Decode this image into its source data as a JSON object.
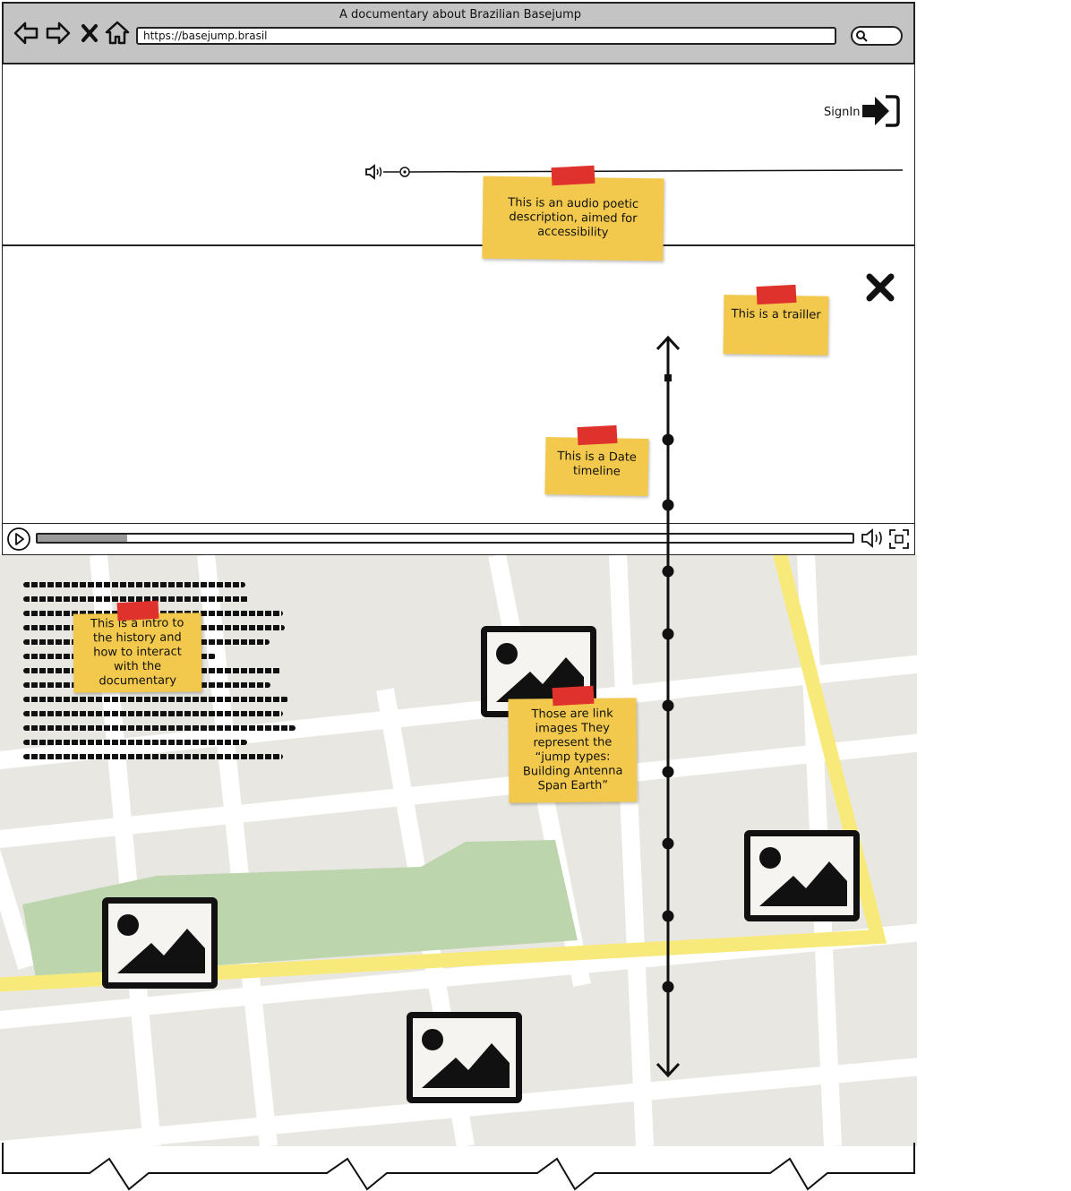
{
  "browser": {
    "title": "A documentary about Brazilian Basejump",
    "url": "https://basejump.brasil",
    "nav_icons": [
      "back-arrow-icon",
      "forward-arrow-icon",
      "close-x-icon",
      "home-icon"
    ],
    "search_icon": "search-icon"
  },
  "header": {
    "signin_label": "SignIn",
    "signin_icon": "sign-in-arrow-icon",
    "audio_icon": "speaker-icon"
  },
  "notes": {
    "audio": "This is an audio poetic description, aimed for accessibility",
    "trailer": "This is a trailler",
    "timeline": "This is a Date timeline",
    "intro": "This is a intro to the history and how to interact with the documentary",
    "links": "Those are link images They represent the “jump types: Building Antenna Span Earth”"
  },
  "video": {
    "close_icon": "close-icon",
    "play_icon": "play-icon",
    "volume_icon": "volume-icon",
    "fullscreen_icon": "fullscreen-icon",
    "progress": 0.11
  },
  "colors": {
    "chrome": "#c4c4c4",
    "sticky": "#f2c94c",
    "tape": "#e0322c",
    "map_bg": "#e9e7e1",
    "park": "#bcd5ad",
    "highway": "#f7ea7a"
  }
}
